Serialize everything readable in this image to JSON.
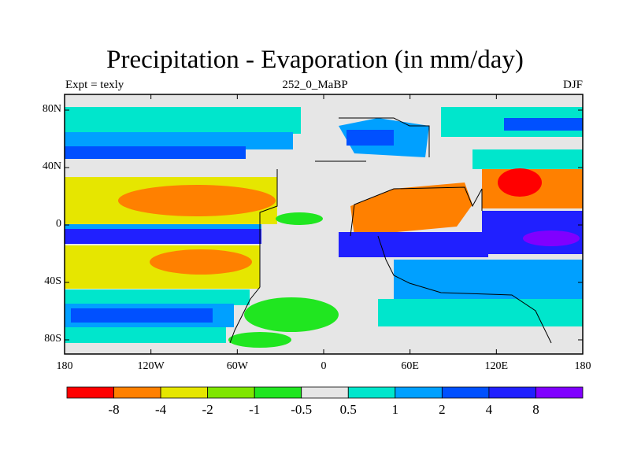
{
  "title": "Precipitation - Evaporation (in mm/day)",
  "subtitle_left": "Expt = texly",
  "subtitle_center": "252_0_MaBP",
  "subtitle_right": "DJF",
  "y_ticks": [
    "80N",
    "40N",
    "0",
    "40S",
    "80S"
  ],
  "x_ticks": [
    "180",
    "120W",
    "60W",
    "0",
    "60E",
    "120E",
    "180"
  ],
  "colorbar": {
    "colors": [
      "#ff0000",
      "#ff8000",
      "#e6e600",
      "#7fe600",
      "#20e620",
      "#e6e6e6",
      "#00e6cc",
      "#00a0ff",
      "#0050ff",
      "#2020ff",
      "#8000ff"
    ],
    "labels": [
      "-8",
      "-4",
      "-2",
      "-1",
      "-0.5",
      "0.5",
      "1",
      "2",
      "4",
      "8"
    ]
  },
  "colors": {
    "land": "#e6e6e6",
    "coast": "#000000",
    "frame": "#000000"
  }
}
